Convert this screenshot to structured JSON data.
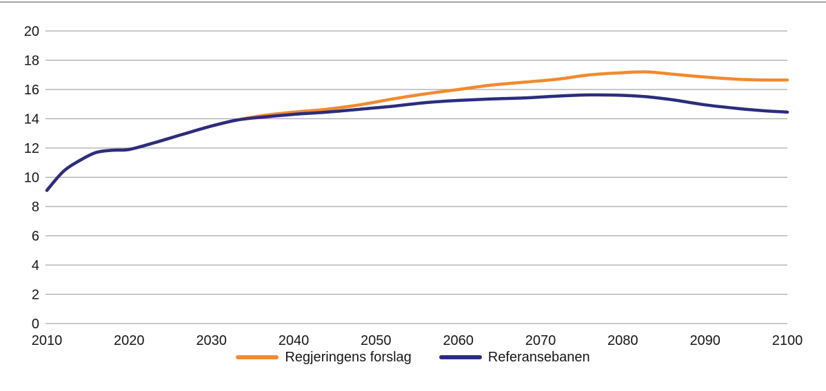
{
  "figure": {
    "background": "#ffffff",
    "top_rule_color": "#a3a3a3",
    "text_color": "#161616",
    "gridline_color": "#a8a8a8"
  },
  "chart_data": {
    "type": "line",
    "title": "",
    "xlabel": "",
    "ylabel": "",
    "xlim": [
      2010,
      2100
    ],
    "ylim": [
      0,
      20
    ],
    "xticks": [
      "2010",
      "2020",
      "2030",
      "2040",
      "2050",
      "2060",
      "2070",
      "2080",
      "2090",
      "2100"
    ],
    "xtick_values": [
      2010,
      2020,
      2030,
      2040,
      2050,
      2060,
      2070,
      2080,
      2090,
      2100
    ],
    "yticks": [
      "0",
      "2",
      "4",
      "6",
      "8",
      "10",
      "12",
      "14",
      "16",
      "18",
      "20"
    ],
    "ytick_values": [
      0,
      2,
      4,
      6,
      8,
      10,
      12,
      14,
      16,
      18,
      20
    ],
    "grid": "horizontal",
    "legend_position": "bottom",
    "x": [
      2010,
      2012,
      2014,
      2016,
      2018,
      2020,
      2023,
      2026,
      2030,
      2033,
      2036,
      2040,
      2044,
      2048,
      2052,
      2056,
      2060,
      2064,
      2068,
      2072,
      2076,
      2080,
      2083,
      2086,
      2090,
      2094,
      2097,
      2100
    ],
    "series": [
      {
        "name": "Regjeringens forslag",
        "color": "#f18a2f",
        "values": [
          9.1,
          10.4,
          11.15,
          11.7,
          11.85,
          11.9,
          12.35,
          12.85,
          13.5,
          13.9,
          14.2,
          14.45,
          14.65,
          14.95,
          15.35,
          15.7,
          16.0,
          16.3,
          16.5,
          16.7,
          17.0,
          17.15,
          17.2,
          17.05,
          16.85,
          16.7,
          16.65,
          16.65
        ]
      },
      {
        "name": "Referansebanen",
        "color": "#2b2d7d",
        "values": [
          9.1,
          10.4,
          11.15,
          11.7,
          11.85,
          11.9,
          12.35,
          12.85,
          13.5,
          13.9,
          14.1,
          14.3,
          14.45,
          14.65,
          14.85,
          15.1,
          15.25,
          15.35,
          15.42,
          15.55,
          15.63,
          15.6,
          15.5,
          15.3,
          14.95,
          14.7,
          14.55,
          14.45
        ]
      }
    ]
  },
  "legend": {
    "items": [
      {
        "label": "Regjeringens forslag",
        "color": "#f18a2f"
      },
      {
        "label": "Referansebanen",
        "color": "#2b2d7d"
      }
    ]
  }
}
